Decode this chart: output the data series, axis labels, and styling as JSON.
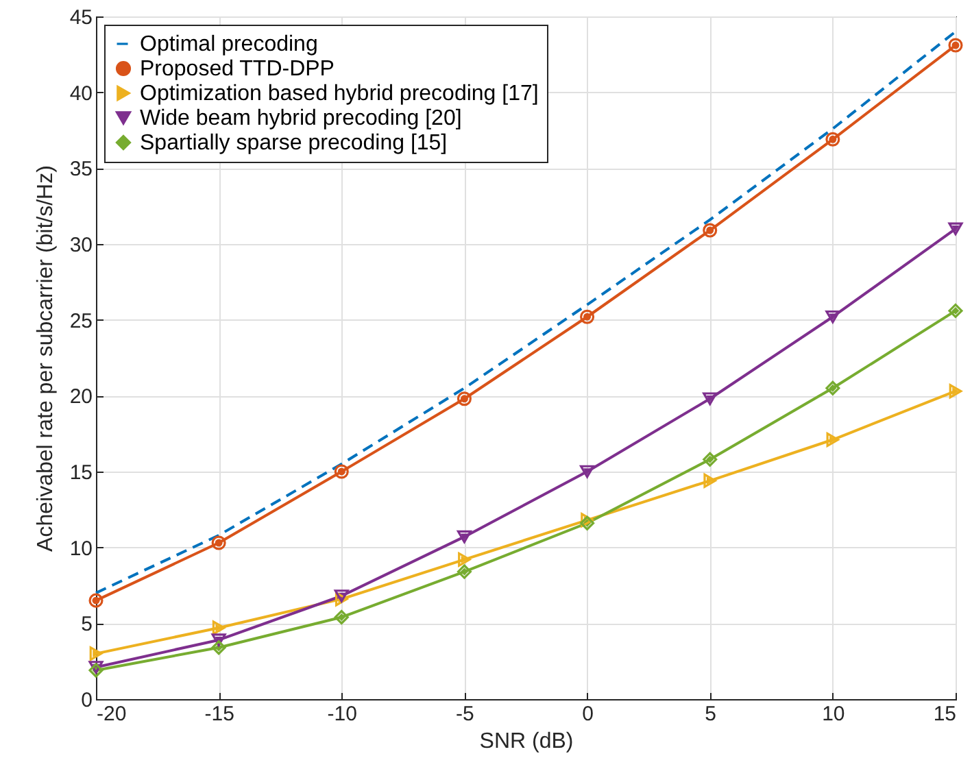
{
  "chart_data": {
    "type": "line",
    "xlabel": "SNR (dB)",
    "ylabel": "Acheivabel rate per subcarrier (bit/s/Hz)",
    "x": [
      -20,
      -15,
      -10,
      -5,
      0,
      5,
      10,
      15
    ],
    "series": [
      {
        "name": "Optimal precoding",
        "color": "#0072bd",
        "marker": "none",
        "line_style": "dashed",
        "values": [
          7.0,
          10.8,
          15.5,
          20.5,
          26.0,
          31.6,
          37.6,
          44.0
        ]
      },
      {
        "name": "Proposed TTD-DPP",
        "color": "#d95319",
        "marker": "circle",
        "line_style": "solid",
        "values": [
          6.5,
          10.3,
          15.0,
          19.8,
          25.2,
          30.9,
          36.9,
          43.1
        ]
      },
      {
        "name": "Optimization based hybrid precoding [17]",
        "color": "#edb120",
        "marker": "triangle-right",
        "line_style": "solid",
        "values": [
          3.0,
          4.7,
          6.6,
          9.2,
          11.8,
          14.4,
          17.1,
          20.3
        ]
      },
      {
        "name": "Wide beam hybrid precoding [20]",
        "color": "#7e2f8e",
        "marker": "triangle-down",
        "line_style": "solid",
        "values": [
          2.1,
          3.9,
          6.8,
          10.7,
          15.0,
          19.8,
          25.2,
          31.0
        ]
      },
      {
        "name": "Spartially sparse precoding [15]",
        "color": "#77ac30",
        "marker": "diamond",
        "line_style": "solid",
        "values": [
          1.9,
          3.4,
          5.4,
          8.4,
          11.6,
          15.8,
          20.5,
          25.6
        ]
      }
    ],
    "xlim": [
      -20,
      15
    ],
    "xticks": [
      -20,
      -15,
      -10,
      -5,
      0,
      5,
      10,
      15
    ],
    "ylim": [
      0,
      45
    ],
    "yticks": [
      0,
      5,
      10,
      15,
      20,
      25,
      30,
      35,
      40,
      45
    ],
    "grid": true,
    "legend": "top left"
  }
}
